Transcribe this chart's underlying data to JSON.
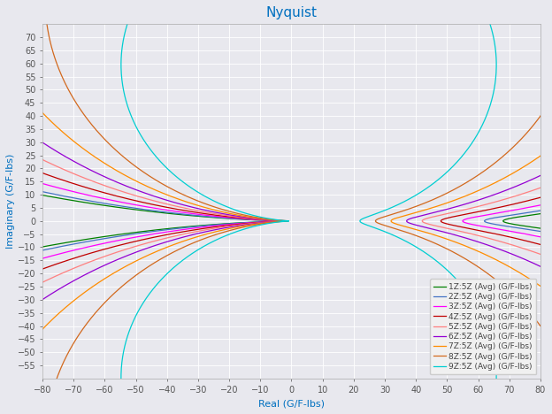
{
  "title": "Nyquist",
  "xlabel": "Real (G/F-lbs)",
  "ylabel": "Imaginary (G/F-lbs)",
  "xlim": [
    -80,
    80
  ],
  "ylim": [
    -60,
    75
  ],
  "xticks": [
    -80,
    -70,
    -60,
    -50,
    -40,
    -30,
    -20,
    -10,
    0,
    10,
    20,
    30,
    40,
    50,
    60,
    70,
    80
  ],
  "yticks": [
    -55,
    -50,
    -45,
    -40,
    -35,
    -30,
    -25,
    -20,
    -15,
    -10,
    -5,
    0,
    5,
    10,
    15,
    20,
    25,
    30,
    35,
    40,
    45,
    50,
    55,
    60,
    65,
    70
  ],
  "title_color": "#0070C0",
  "axis_label_color": "#0070C0",
  "tick_color": "#555555",
  "background_color": "#E8E8EE",
  "grid_color": "#FFFFFF",
  "series": [
    {
      "label": "1Z:5Z (Avg) (G/F-lbs)",
      "color": "#008000",
      "lw": 0.9
    },
    {
      "label": "2Z:5Z (Avg) (G/F-lbs)",
      "color": "#4472C4",
      "lw": 0.9
    },
    {
      "label": "3Z:5Z (Avg) (G/F-lbs)",
      "color": "#FF00FF",
      "lw": 0.9
    },
    {
      "label": "4Z:5Z (Avg) (G/F-lbs)",
      "color": "#C00000",
      "lw": 0.9
    },
    {
      "label": "5Z:5Z (Avg) (G/F-lbs)",
      "color": "#FF8080",
      "lw": 0.9
    },
    {
      "label": "6Z:5Z (Avg) (G/F-lbs)",
      "color": "#9400D3",
      "lw": 0.9
    },
    {
      "label": "7Z:5Z (Avg) (G/F-lbs)",
      "color": "#FF8C00",
      "lw": 0.9
    },
    {
      "label": "8Z:5Z (Avg) (G/F-lbs)",
      "color": "#D2691E",
      "lw": 0.9
    },
    {
      "label": "9Z:5Z (Avg) (G/F-lbs)",
      "color": "#00CED1",
      "lw": 0.9
    }
  ],
  "legend_fontsize": 6.5,
  "title_fontsize": 11,
  "axis_label_fontsize": 8,
  "series_params": [
    [
      1.0,
      0.038,
      68.0
    ],
    [
      1.0,
      0.04,
      62.0
    ],
    [
      1.0,
      0.046,
      55.0
    ],
    [
      1.0,
      0.052,
      48.0
    ],
    [
      1.0,
      0.058,
      42.0
    ],
    [
      1.0,
      0.064,
      37.0
    ],
    [
      1.0,
      0.071,
      32.0
    ],
    [
      1.0,
      0.079,
      27.0
    ],
    [
      1.0,
      0.092,
      22.0
    ]
  ]
}
